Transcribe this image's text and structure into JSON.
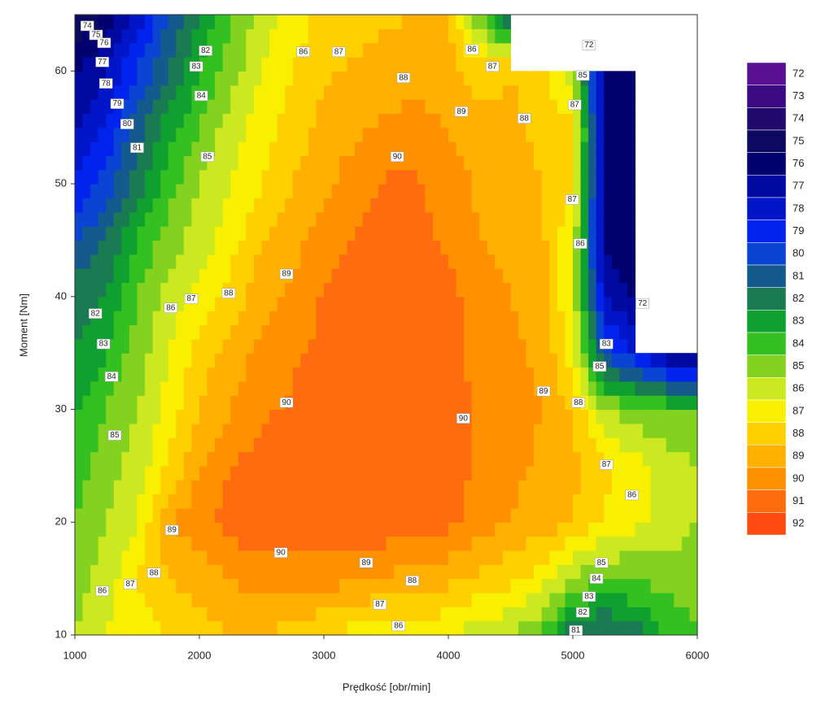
{
  "chart_data": {
    "type": "contour",
    "x_label": "Prędkość [obr/min]",
    "y_label": "Moment [Nm]",
    "xlim": [
      1000,
      6000
    ],
    "ylim": [
      10,
      65
    ],
    "xticks": [
      1000,
      2000,
      3000,
      4000,
      5000,
      6000
    ],
    "yticks": [
      10,
      20,
      30,
      40,
      50,
      60
    ],
    "x": [
      1000,
      1250,
      1500,
      1750,
      2000,
      2250,
      2500,
      2750,
      3000,
      3250,
      3500,
      3750,
      4000,
      4250,
      4500,
      4750,
      5000,
      5250,
      5500,
      5750,
      6000
    ],
    "y": [
      10,
      15,
      20,
      25,
      30,
      35,
      40,
      45,
      50,
      55,
      60,
      65
    ],
    "z": [
      [
        85,
        86,
        86.5,
        87,
        87.5,
        88,
        88,
        87.5,
        87,
        86.5,
        86,
        86.5,
        86,
        85.5,
        85,
        84,
        81,
        80.5,
        81.5,
        83,
        84
      ],
      [
        84.5,
        85.5,
        87,
        88,
        88.5,
        89,
        89.5,
        89.5,
        89.5,
        89.2,
        88.8,
        88.5,
        88.3,
        87.8,
        87.3,
        86.5,
        85,
        84,
        84,
        84.5,
        84.5
      ],
      [
        84,
        85,
        86,
        89,
        89.5,
        90.5,
        90.5,
        90.7,
        90.7,
        90.8,
        90.7,
        90.5,
        90.3,
        89.5,
        89,
        88.5,
        88,
        87,
        86.3,
        85.5,
        85
      ],
      [
        83.5,
        84.5,
        85.5,
        87,
        89,
        90,
        90.3,
        90.5,
        90.6,
        90.8,
        90.8,
        90.8,
        90.5,
        89.8,
        89.3,
        88.8,
        88.3,
        87.2,
        86.5,
        85.5,
        85
      ],
      [
        83,
        84,
        85,
        86.5,
        88,
        89,
        89.8,
        90.2,
        90.5,
        90.7,
        90.8,
        90.8,
        90.5,
        89.8,
        89.3,
        89,
        88,
        85,
        84.5,
        84,
        84
      ],
      [
        82,
        83,
        84.5,
        86,
        87.5,
        88.5,
        89.2,
        89.8,
        90.3,
        90.6,
        90.8,
        90.7,
        90.5,
        89.6,
        89.2,
        88.8,
        86.5,
        80,
        78,
        76,
        75
      ],
      [
        81.5,
        82,
        84,
        85.5,
        86.5,
        87.5,
        88.5,
        89.2,
        90.1,
        90.4,
        90.7,
        90.6,
        90.4,
        89.3,
        89,
        88.5,
        86,
        77,
        76,
        null,
        null
      ],
      [
        80,
        81,
        83,
        84.5,
        85.5,
        86.5,
        88,
        88.7,
        89.5,
        90.1,
        90.5,
        90.4,
        89.8,
        89,
        88.8,
        88.3,
        86,
        76,
        75,
        null,
        null
      ],
      [
        78,
        79.5,
        81.5,
        83.5,
        85,
        86,
        87,
        88,
        88.8,
        89.5,
        90.2,
        90.1,
        89.5,
        88.8,
        88.5,
        88,
        87,
        76,
        75,
        null,
        null
      ],
      [
        77,
        78,
        80.5,
        82.5,
        84,
        85.5,
        86.5,
        87.5,
        88.3,
        88.8,
        89.2,
        89.3,
        89,
        88.5,
        88.2,
        87.8,
        87.3,
        76,
        75,
        null,
        null
      ],
      [
        76,
        77,
        79,
        81,
        83,
        84.5,
        86,
        87,
        87.8,
        88.2,
        88.5,
        88.7,
        88.5,
        87.5,
        88,
        87.5,
        85,
        76,
        75,
        null,
        null
      ],
      [
        74,
        75,
        77.5,
        80,
        82,
        84,
        85.5,
        86.5,
        87.3,
        87.5,
        87.8,
        88,
        88,
        84,
        80,
        null,
        null,
        null,
        null,
        null,
        null
      ]
    ],
    "levels": [
      72,
      73,
      74,
      75,
      76,
      77,
      78,
      79,
      80,
      81,
      82,
      83,
      84,
      85,
      86,
      87,
      88,
      89,
      90,
      91,
      92
    ],
    "colors": [
      "#5a1090",
      "#3c0a80",
      "#220a6c",
      "#0c0a60",
      "#00006e",
      "#000aa0",
      "#0016c8",
      "#0024ee",
      "#0a44d2",
      "#145a8c",
      "#1a7a52",
      "#10a030",
      "#34c020",
      "#84d220",
      "#cce820",
      "#f8f000",
      "#ffd000",
      "#ffb000",
      "#ff9000",
      "#ff6c10",
      "#ff4a10"
    ],
    "contour_labels": [
      {
        "x": 1100,
        "y": 64,
        "value": 74
      },
      {
        "x": 1170,
        "y": 63.2,
        "value": 75
      },
      {
        "x": 1235,
        "y": 62.5,
        "value": 76
      },
      {
        "x": 1220,
        "y": 60.8,
        "value": 77
      },
      {
        "x": 1250,
        "y": 58.9,
        "value": 78
      },
      {
        "x": 1340,
        "y": 57.1,
        "value": 79
      },
      {
        "x": 1420,
        "y": 55.3,
        "value": 80
      },
      {
        "x": 1500,
        "y": 53.2,
        "value": 81
      },
      {
        "x": 2050,
        "y": 61.8,
        "value": 82
      },
      {
        "x": 1975,
        "y": 60.4,
        "value": 83
      },
      {
        "x": 2015,
        "y": 57.8,
        "value": 84
      },
      {
        "x": 2065,
        "y": 52.4,
        "value": 85
      },
      {
        "x": 2835,
        "y": 61.7,
        "value": 86
      },
      {
        "x": 3120,
        "y": 61.7,
        "value": 87
      },
      {
        "x": 3640,
        "y": 59.4,
        "value": 88
      },
      {
        "x": 4105,
        "y": 56.4,
        "value": 89
      },
      {
        "x": 3590,
        "y": 52.4,
        "value": 90
      },
      {
        "x": 4190,
        "y": 61.9,
        "value": 86
      },
      {
        "x": 4355,
        "y": 60.4,
        "value": 87
      },
      {
        "x": 5130,
        "y": 62.3,
        "value": 72
      },
      {
        "x": 5080,
        "y": 59.6,
        "value": 85
      },
      {
        "x": 5015,
        "y": 57,
        "value": 87
      },
      {
        "x": 4610,
        "y": 55.8,
        "value": 88
      },
      {
        "x": 4995,
        "y": 48.6,
        "value": 87
      },
      {
        "x": 5060,
        "y": 44.7,
        "value": 86
      },
      {
        "x": 5560,
        "y": 39.4,
        "value": 72
      },
      {
        "x": 5270,
        "y": 35.8,
        "value": 83
      },
      {
        "x": 5215,
        "y": 33.8,
        "value": 85
      },
      {
        "x": 4765,
        "y": 31.6,
        "value": 89
      },
      {
        "x": 5045,
        "y": 30.6,
        "value": 88
      },
      {
        "x": 4120,
        "y": 29.2,
        "value": 90
      },
      {
        "x": 2700,
        "y": 30.6,
        "value": 90
      },
      {
        "x": 2700,
        "y": 42,
        "value": 89
      },
      {
        "x": 2235,
        "y": 40.3,
        "value": 88
      },
      {
        "x": 1935,
        "y": 39.8,
        "value": 87
      },
      {
        "x": 1770,
        "y": 39,
        "value": 86
      },
      {
        "x": 1165,
        "y": 38.5,
        "value": 82
      },
      {
        "x": 1230,
        "y": 35.8,
        "value": 83
      },
      {
        "x": 1295,
        "y": 32.9,
        "value": 84
      },
      {
        "x": 1320,
        "y": 27.7,
        "value": 85
      },
      {
        "x": 1780,
        "y": 19.3,
        "value": 89
      },
      {
        "x": 1635,
        "y": 15.5,
        "value": 88
      },
      {
        "x": 1445,
        "y": 14.5,
        "value": 87
      },
      {
        "x": 1220,
        "y": 13.9,
        "value": 86
      },
      {
        "x": 2655,
        "y": 17.3,
        "value": 90
      },
      {
        "x": 3340,
        "y": 16.4,
        "value": 89
      },
      {
        "x": 3710,
        "y": 14.8,
        "value": 88
      },
      {
        "x": 3450,
        "y": 12.7,
        "value": 87
      },
      {
        "x": 3600,
        "y": 10.8,
        "value": 86
      },
      {
        "x": 5270,
        "y": 25.1,
        "value": 87
      },
      {
        "x": 5475,
        "y": 22.4,
        "value": 86
      },
      {
        "x": 5230,
        "y": 16.4,
        "value": 85
      },
      {
        "x": 5190,
        "y": 15,
        "value": 84
      },
      {
        "x": 5130,
        "y": 13.4,
        "value": 83
      },
      {
        "x": 5080,
        "y": 12,
        "value": 82
      },
      {
        "x": 5025,
        "y": 10.4,
        "value": 81
      }
    ]
  }
}
